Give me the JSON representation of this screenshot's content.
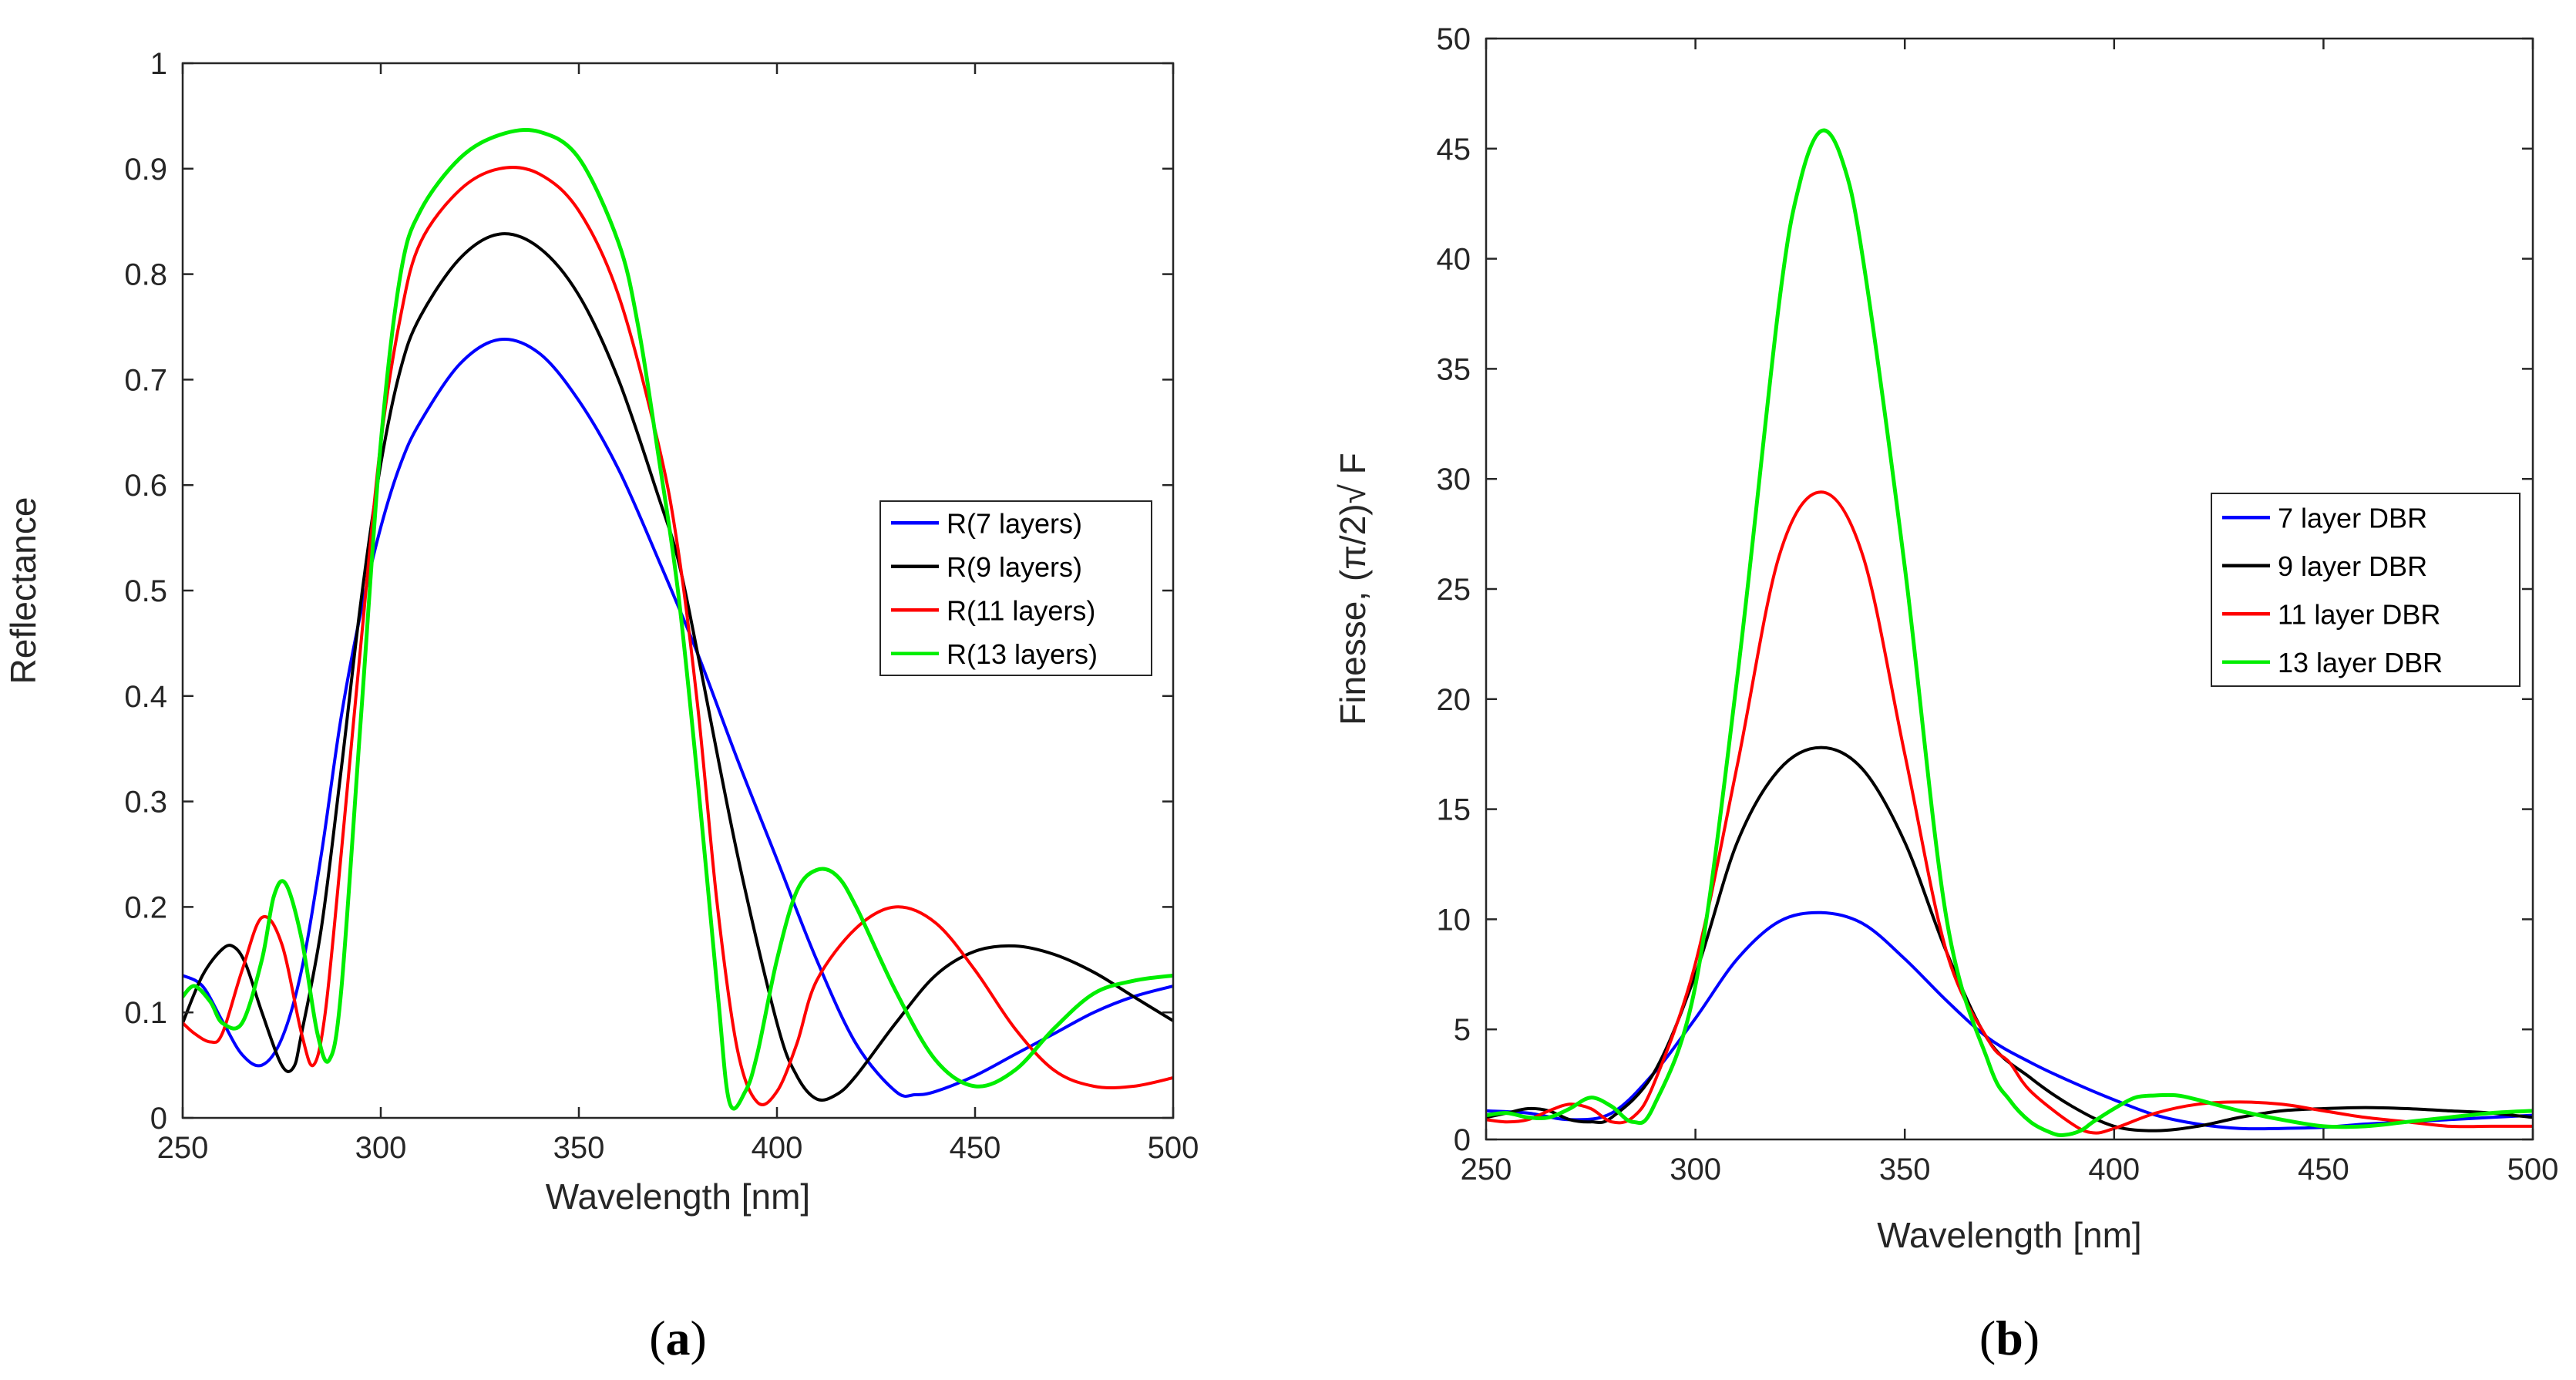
{
  "chart_data": [
    {
      "type": "line",
      "panel_label": "a",
      "title": "",
      "xlabel": "Wavelength [nm]",
      "ylabel": "Reflectance",
      "xlim": [
        250,
        500
      ],
      "ylim": [
        0,
        1
      ],
      "xticks": [
        "250",
        "300",
        "350",
        "400",
        "450",
        "500"
      ],
      "yticks": [
        "0",
        "0.1",
        "0.2",
        "0.3",
        "0.4",
        "0.5",
        "0.6",
        "0.7",
        "0.8",
        "0.9",
        "1"
      ],
      "legend_position": "right",
      "grid": false,
      "series": [
        {
          "name": "R(7 layers)",
          "color": "#0000ff",
          "x": [
            250,
            255,
            260,
            265,
            270,
            275,
            280,
            285,
            290,
            295,
            300,
            305,
            310,
            320,
            330,
            340,
            350,
            360,
            370,
            380,
            390,
            400,
            410,
            420,
            430,
            435,
            440,
            450,
            460,
            470,
            480,
            490,
            500
          ],
          "y": [
            0.135,
            0.125,
            0.092,
            0.06,
            0.05,
            0.075,
            0.14,
            0.25,
            0.38,
            0.48,
            0.56,
            0.62,
            0.66,
            0.715,
            0.738,
            0.725,
            0.68,
            0.615,
            0.53,
            0.44,
            0.34,
            0.245,
            0.15,
            0.07,
            0.025,
            0.022,
            0.025,
            0.04,
            0.06,
            0.08,
            0.1,
            0.115,
            0.125
          ]
        },
        {
          "name": "R(9 layers)",
          "color": "#000000",
          "x": [
            250,
            255,
            260,
            263,
            266,
            270,
            275,
            278,
            280,
            285,
            290,
            295,
            300,
            305,
            310,
            320,
            330,
            340,
            350,
            360,
            370,
            375,
            380,
            390,
            400,
            405,
            410,
            415,
            420,
            430,
            440,
            450,
            460,
            470,
            480,
            490,
            500
          ],
          "y": [
            0.09,
            0.135,
            0.16,
            0.162,
            0.145,
            0.1,
            0.05,
            0.048,
            0.08,
            0.18,
            0.33,
            0.49,
            0.62,
            0.71,
            0.76,
            0.815,
            0.838,
            0.825,
            0.78,
            0.7,
            0.59,
            0.53,
            0.44,
            0.25,
            0.09,
            0.04,
            0.018,
            0.022,
            0.04,
            0.09,
            0.135,
            0.158,
            0.163,
            0.155,
            0.138,
            0.115,
            0.092
          ]
        },
        {
          "name": "R(11 layers)",
          "color": "#ff0000",
          "x": [
            250,
            253,
            257,
            260,
            265,
            270,
            275,
            280,
            283,
            286,
            290,
            295,
            300,
            305,
            310,
            320,
            330,
            340,
            350,
            360,
            370,
            375,
            380,
            385,
            390,
            395,
            400,
            405,
            410,
            420,
            430,
            440,
            450,
            460,
            470,
            480,
            490,
            500
          ],
          "y": [
            0.09,
            0.08,
            0.072,
            0.08,
            0.14,
            0.19,
            0.165,
            0.08,
            0.05,
            0.1,
            0.25,
            0.45,
            0.64,
            0.76,
            0.83,
            0.88,
            0.9,
            0.895,
            0.86,
            0.78,
            0.64,
            0.54,
            0.39,
            0.2,
            0.065,
            0.015,
            0.025,
            0.07,
            0.13,
            0.18,
            0.2,
            0.185,
            0.14,
            0.085,
            0.045,
            0.03,
            0.03,
            0.038
          ]
        },
        {
          "name": "R(13 layers)",
          "color": "#00ee00",
          "x": [
            250,
            253,
            257,
            260,
            265,
            270,
            273,
            276,
            280,
            284,
            287,
            290,
            295,
            300,
            305,
            310,
            320,
            330,
            340,
            350,
            360,
            365,
            370,
            375,
            380,
            385,
            388,
            392,
            395,
            400,
            405,
            410,
            415,
            420,
            430,
            440,
            450,
            460,
            470,
            480,
            490,
            500
          ],
          "y": [
            0.115,
            0.125,
            0.11,
            0.09,
            0.09,
            0.15,
            0.21,
            0.222,
            0.17,
            0.08,
            0.055,
            0.12,
            0.38,
            0.64,
            0.8,
            0.86,
            0.91,
            0.932,
            0.935,
            0.91,
            0.83,
            0.75,
            0.63,
            0.5,
            0.32,
            0.12,
            0.015,
            0.025,
            0.06,
            0.15,
            0.215,
            0.235,
            0.23,
            0.2,
            0.12,
            0.055,
            0.03,
            0.045,
            0.085,
            0.118,
            0.13,
            0.135
          ]
        }
      ]
    },
    {
      "type": "line",
      "panel_label": "b",
      "title": "",
      "xlabel": "Wavelength [nm]",
      "ylabel": "Finesse, (π/2)√ F",
      "xlim": [
        250,
        500
      ],
      "ylim": [
        0,
        50
      ],
      "xticks": [
        "250",
        "300",
        "350",
        "400",
        "450",
        "500"
      ],
      "yticks": [
        "0",
        "5",
        "10",
        "15",
        "20",
        "25",
        "30",
        "35",
        "40",
        "45",
        "50"
      ],
      "legend_position": "right",
      "grid": false,
      "series": [
        {
          "name": "7 layer DBR",
          "color": "#0000ff",
          "x": [
            250,
            260,
            270,
            280,
            290,
            300,
            310,
            320,
            330,
            340,
            350,
            360,
            370,
            380,
            390,
            400,
            410,
            420,
            430,
            440,
            450,
            460,
            470,
            480,
            490,
            500
          ],
          "y": [
            1.3,
            1.2,
            0.9,
            1.2,
            3.0,
            5.5,
            8.2,
            9.9,
            10.3,
            9.8,
            8.2,
            6.3,
            4.6,
            3.5,
            2.6,
            1.8,
            1.1,
            0.7,
            0.5,
            0.5,
            0.55,
            0.7,
            0.8,
            0.9,
            1.0,
            1.1
          ]
        },
        {
          "name": "9 layer DBR",
          "color": "#000000",
          "x": [
            250,
            255,
            260,
            265,
            270,
            275,
            280,
            290,
            300,
            310,
            320,
            330,
            340,
            350,
            360,
            370,
            380,
            390,
            400,
            410,
            420,
            430,
            440,
            450,
            460,
            470,
            480,
            490,
            500
          ],
          "y": [
            1.0,
            1.2,
            1.4,
            1.3,
            0.9,
            0.8,
            1.0,
            3.0,
            7.5,
            13.5,
            16.8,
            17.8,
            16.8,
            13.5,
            8.5,
            4.5,
            2.8,
            1.5,
            0.6,
            0.4,
            0.6,
            1.0,
            1.3,
            1.4,
            1.45,
            1.4,
            1.3,
            1.2,
            1.0
          ]
        },
        {
          "name": "11 layer DBR",
          "color": "#ff0000",
          "x": [
            250,
            255,
            260,
            265,
            270,
            275,
            280,
            285,
            290,
            300,
            310,
            320,
            330,
            340,
            350,
            360,
            370,
            375,
            380,
            390,
            395,
            400,
            410,
            420,
            430,
            440,
            450,
            460,
            470,
            480,
            490,
            500
          ],
          "y": [
            0.9,
            0.8,
            0.9,
            1.3,
            1.6,
            1.4,
            0.8,
            1.0,
            2.5,
            8.0,
            17.0,
            26.5,
            29.4,
            26.5,
            17.5,
            8.5,
            4.5,
            3.5,
            2.2,
            0.7,
            0.3,
            0.5,
            1.2,
            1.6,
            1.7,
            1.6,
            1.3,
            1.0,
            0.8,
            0.6,
            0.6,
            0.6
          ]
        },
        {
          "name": "13 layer DBR",
          "color": "#00ee00",
          "x": [
            250,
            255,
            260,
            265,
            270,
            275,
            280,
            285,
            290,
            300,
            310,
            320,
            325,
            330,
            335,
            340,
            350,
            360,
            370,
            375,
            380,
            385,
            388,
            392,
            395,
            400,
            405,
            410,
            415,
            420,
            430,
            440,
            450,
            460,
            470,
            480,
            490,
            500
          ],
          "y": [
            1.1,
            1.2,
            1.0,
            1.0,
            1.4,
            1.9,
            1.5,
            0.8,
            1.5,
            7.0,
            21.0,
            38.0,
            43.5,
            45.8,
            44.5,
            40.0,
            26.0,
            10.0,
            3.5,
            1.8,
            0.8,
            0.3,
            0.2,
            0.4,
            0.8,
            1.4,
            1.9,
            2.0,
            2.0,
            1.8,
            1.3,
            0.9,
            0.6,
            0.6,
            0.8,
            1.0,
            1.2,
            1.3
          ]
        }
      ]
    }
  ]
}
